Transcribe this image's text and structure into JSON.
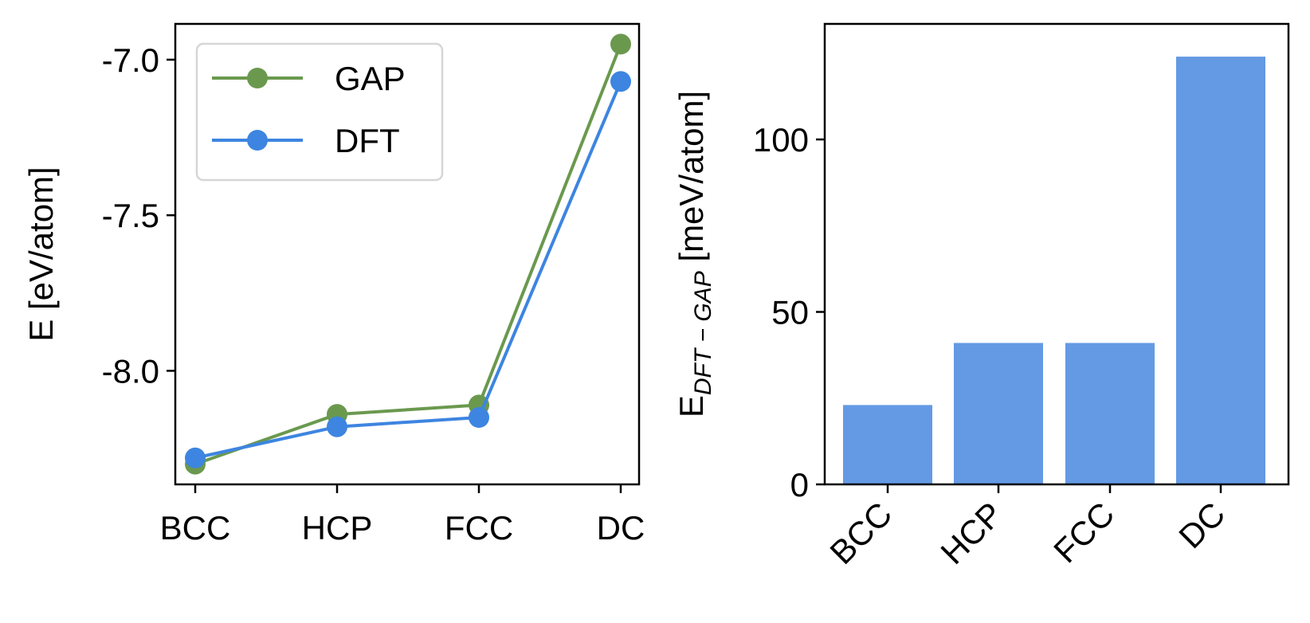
{
  "chart_data": [
    {
      "type": "line",
      "categories": [
        "BCC",
        "HCP",
        "FCC",
        "DC"
      ],
      "series": [
        {
          "name": "GAP",
          "values": [
            -8.3,
            -8.14,
            -8.11,
            -6.95
          ],
          "color": "#6a994e"
        },
        {
          "name": "DFT",
          "values": [
            -8.28,
            -8.18,
            -8.15,
            -7.07
          ],
          "color": "#3d85e0"
        }
      ],
      "ylabel": "E [eV/atom]",
      "ylim": [
        -8.365,
        -6.885
      ],
      "yticks": [
        -8.0,
        -7.5,
        -7.0
      ],
      "ytick_labels": [
        "-8.0",
        "-7.5",
        "-7.0"
      ],
      "grid": false,
      "legend": "top-left"
    },
    {
      "type": "bar",
      "categories": [
        "BCC",
        "HCP",
        "FCC",
        "DC"
      ],
      "values": [
        23,
        41,
        41,
        124
      ],
      "color": "#6499e4",
      "ylabel": {
        "main": "E",
        "sub": "DFT − GAP",
        "unit": " [meV/atom]"
      },
      "ylim": [
        0,
        133.5
      ],
      "yticks": [
        0,
        50,
        100
      ],
      "ytick_labels": [
        "0",
        "50",
        "100"
      ],
      "grid": false
    }
  ]
}
